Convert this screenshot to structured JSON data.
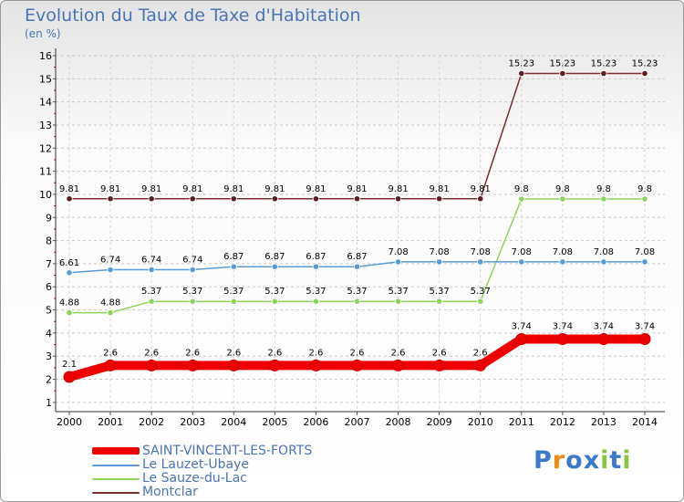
{
  "chart_data": {
    "type": "line",
    "title": "Evolution du Taux de Taxe d'Habitation",
    "subtitle": "(en %)",
    "x": [
      "2000",
      "2001",
      "2002",
      "2003",
      "2004",
      "2005",
      "2006",
      "2007",
      "2008",
      "2009",
      "2010",
      "2011",
      "2012",
      "2013",
      "2014"
    ],
    "yticks": [
      "1",
      "2",
      "3",
      "4",
      "5",
      "6",
      "7",
      "8",
      "9",
      "10",
      "11",
      "12",
      "13",
      "14",
      "15",
      "16"
    ],
    "ylim": [
      0.6,
      16
    ],
    "grid": "horizontal dashed",
    "series": [
      {
        "name": "SAINT-VINCENT-LES-FORTS",
        "color": "#ee0000",
        "marker_color": "#ee0000",
        "values": [
          2.1,
          2.6,
          2.6,
          2.6,
          2.6,
          2.6,
          2.6,
          2.6,
          2.6,
          2.6,
          2.6,
          3.74,
          3.74,
          3.74,
          3.74
        ],
        "labels": [
          "2.1",
          "2.6",
          "2.6",
          "2.6",
          "2.6",
          "2.6",
          "2.6",
          "2.6",
          "2.6",
          "2.6",
          "2.6",
          "3.74",
          "3.74",
          "3.74",
          "3.74"
        ]
      },
      {
        "name": "Le Lauzet-Ubaye",
        "color": "#5b9bd5",
        "marker_color": "#5b9bd5",
        "values": [
          6.61,
          6.74,
          6.74,
          6.74,
          6.87,
          6.87,
          6.87,
          6.87,
          7.08,
          7.08,
          7.08,
          7.08,
          7.08,
          7.08,
          7.08
        ],
        "labels": [
          "6.61",
          "6.74",
          "6.74",
          "6.74",
          "6.87",
          "6.87",
          "6.87",
          "6.87",
          "7.08",
          "7.08",
          "7.08",
          "7.08",
          "7.08",
          "7.08",
          "7.08"
        ]
      },
      {
        "name": "Le Sauze-du-Lac",
        "color": "#8fd45a",
        "marker_color": "#8fd45a",
        "values": [
          4.88,
          4.88,
          5.37,
          5.37,
          5.37,
          5.37,
          5.37,
          5.37,
          5.37,
          5.37,
          5.37,
          9.8,
          9.8,
          9.8,
          9.8
        ],
        "labels": [
          "4.88",
          "4.88",
          "5.37",
          "5.37",
          "5.37",
          "5.37",
          "5.37",
          "5.37",
          "5.37",
          "5.37",
          "5.37",
          "9.8",
          "9.8",
          "9.8",
          "9.8"
        ]
      },
      {
        "name": "Montclar",
        "color": "#7a2e2e",
        "marker_color": "#5c1e1e",
        "values": [
          9.81,
          9.81,
          9.81,
          9.81,
          9.81,
          9.81,
          9.81,
          9.81,
          9.81,
          9.81,
          9.81,
          15.23,
          15.23,
          15.23,
          15.23
        ],
        "labels": [
          "9.81",
          "9.81",
          "9.81",
          "9.81",
          "9.81",
          "9.81",
          "9.81",
          "9.81",
          "9.81",
          "9.81",
          "9.81",
          "15.23",
          "15.23",
          "15.23",
          "15.23"
        ]
      }
    ]
  },
  "legend": {
    "items": [
      {
        "label": "SAINT-VINCENT-LES-FORTS",
        "color": "#ee0000"
      },
      {
        "label": "Le Lauzet-Ubaye",
        "color": "#5b9bd5"
      },
      {
        "label": "Le Sauze-du-Lac",
        "color": "#8fd45a"
      },
      {
        "label": "Montclar",
        "color": "#7a2e2e"
      }
    ]
  },
  "logo": {
    "letters": [
      "P",
      "r",
      "o",
      "x",
      "i",
      "t",
      "i"
    ],
    "colors": [
      "#3a78c8",
      "#f08a10",
      "#3a78c8",
      "#3a78c8",
      "#8cc63f",
      "#3a78c8",
      "#8cc63f"
    ]
  }
}
